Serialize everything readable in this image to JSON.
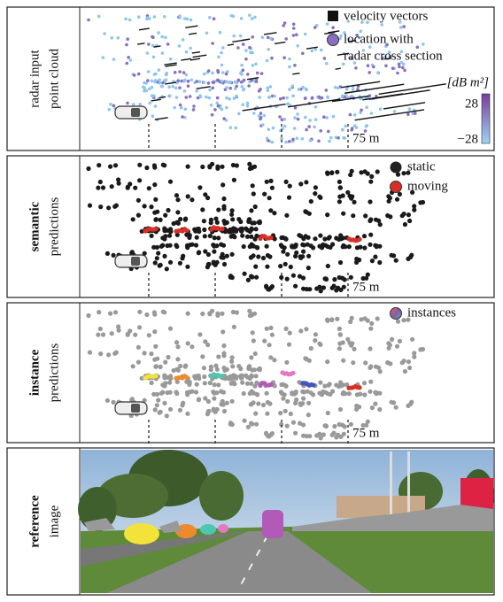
{
  "panels": [
    {
      "label_lines": [
        "radar input",
        "point cloud"
      ],
      "legend": [
        {
          "label_lines": [
            "velocity vectors"
          ]
        },
        {
          "label_lines": [
            "location with",
            "radar cross section"
          ]
        }
      ],
      "colorbar": {
        "unit": "[dB m²]",
        "max_label": "28",
        "min_label": "−28"
      },
      "range_label": "75 m"
    },
    {
      "label_bold": "semantic",
      "label": "predictions",
      "legend": [
        {
          "label_lines": [
            "static"
          ]
        },
        {
          "label_lines": [
            "moving"
          ]
        }
      ],
      "range_label": "75 m"
    },
    {
      "label_bold": "instance",
      "label": "predictions",
      "legend": [
        {
          "label_lines": [
            "instances"
          ]
        }
      ],
      "range_label": "75 m"
    },
    {
      "label_bold": "reference",
      "label": "image"
    }
  ]
}
